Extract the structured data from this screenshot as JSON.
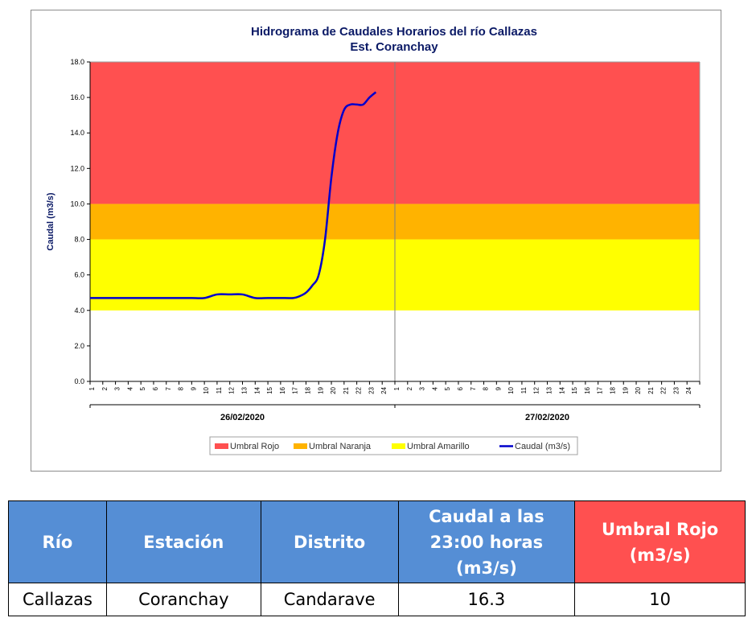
{
  "chart_data": {
    "type": "line",
    "title": "Hidrograma de Caudales Horarios del río Callazas",
    "subtitle": "Est. Coranchay",
    "ylabel": "Caudal (m3/s)",
    "ylim": [
      0,
      18
    ],
    "yticks": [
      "0.0",
      "2.0",
      "4.0",
      "6.0",
      "8.0",
      "10.0",
      "12.0",
      "14.0",
      "16.0",
      "18.0"
    ],
    "x_tick_labels": [
      "1",
      "2",
      "3",
      "4",
      "5",
      "6",
      "7",
      "8",
      "9",
      "10",
      "11",
      "12",
      "13",
      "14",
      "15",
      "16",
      "17",
      "18",
      "19",
      "20",
      "21",
      "22",
      "23",
      "24"
    ],
    "dates": [
      "26/02/2020",
      "27/02/2020"
    ],
    "thresholds": [
      {
        "name": "Umbral Rojo",
        "from": 10,
        "to": 18,
        "color": "#ff5050"
      },
      {
        "name": "Umbral Naranja",
        "from": 8,
        "to": 10,
        "color": "#ffb300"
      },
      {
        "name": "Umbral Amarillo",
        "from": 4,
        "to": 8,
        "color": "#ffff00"
      }
    ],
    "series": [
      {
        "name": "Caudal (m3/s)",
        "color": "#0000cc",
        "x": [
          0,
          1,
          2,
          3,
          4,
          5,
          6,
          7,
          8,
          9,
          10,
          11,
          12,
          13,
          14,
          15,
          16,
          16.5,
          17,
          17.5,
          18,
          18.5,
          19,
          19.5,
          20,
          20.5,
          21,
          21.5,
          22,
          22.5
        ],
        "values": [
          4.7,
          4.7,
          4.7,
          4.7,
          4.7,
          4.7,
          4.7,
          4.7,
          4.7,
          4.7,
          4.9,
          4.9,
          4.9,
          4.7,
          4.7,
          4.7,
          4.7,
          4.8,
          5.0,
          5.4,
          6.0,
          8.0,
          11.5,
          14.0,
          15.3,
          15.6,
          15.6,
          15.6,
          16.0,
          16.3
        ]
      }
    ],
    "legend_position": "bottom",
    "grid": false
  },
  "legend": [
    {
      "label": "Umbral Rojo",
      "color": "#ff5050",
      "kind": "box"
    },
    {
      "label": "Umbral Naranja",
      "color": "#ffb300",
      "kind": "box"
    },
    {
      "label": "Umbral Amarillo",
      "color": "#ffff00",
      "kind": "box"
    },
    {
      "label": "Caudal (m3/s)",
      "color": "#0000cc",
      "kind": "line"
    }
  ],
  "table": {
    "headers": [
      {
        "label": "Río",
        "color": "#558ed5"
      },
      {
        "label": "Estación",
        "color": "#558ed5"
      },
      {
        "label": "Distrito",
        "color": "#558ed5"
      },
      {
        "label": "Caudal a las 23:00 horas (m3/s)",
        "color": "#558ed5"
      },
      {
        "label": "Umbral  Rojo (m3/s)",
        "color": "#ff5050"
      }
    ],
    "row": [
      "Callazas",
      "Coranchay",
      "Candarave",
      "16.3",
      "10"
    ]
  }
}
